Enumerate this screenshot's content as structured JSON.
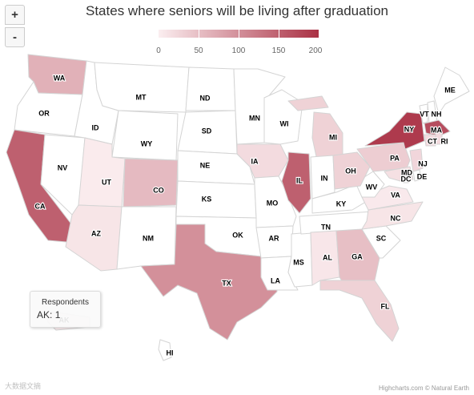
{
  "title": "States where seniors will be living after graduation",
  "zoom": {
    "in_label": "+",
    "out_label": "-"
  },
  "legend": {
    "min": 0,
    "max": 200,
    "ticks": [
      "0",
      "50",
      "100",
      "150",
      "200"
    ],
    "min_color": "#fbeef0",
    "max_color": "#aa3144"
  },
  "tooltip": {
    "header": "Respondents",
    "state": "AK",
    "value_text": "1"
  },
  "credits": "Highcharts.com © Natural Earth",
  "watermark": "大数据文摘",
  "states": [
    {
      "code": "WA",
      "value": 65
    },
    {
      "code": "OR",
      "value": 0
    },
    {
      "code": "CA",
      "value": 150
    },
    {
      "code": "NV",
      "value": 0
    },
    {
      "code": "ID",
      "value": 0
    },
    {
      "code": "MT",
      "value": 0
    },
    {
      "code": "WY",
      "value": 0
    },
    {
      "code": "UT",
      "value": 3
    },
    {
      "code": "AZ",
      "value": 10
    },
    {
      "code": "CO",
      "value": 55
    },
    {
      "code": "NM",
      "value": 0
    },
    {
      "code": "ND",
      "value": 0
    },
    {
      "code": "SD",
      "value": 0
    },
    {
      "code": "NE",
      "value": 0
    },
    {
      "code": "KS",
      "value": 0
    },
    {
      "code": "OK",
      "value": 0
    },
    {
      "code": "TX",
      "value": 100
    },
    {
      "code": "MN",
      "value": 0
    },
    {
      "code": "IA",
      "value": 20
    },
    {
      "code": "MO",
      "value": 0
    },
    {
      "code": "AR",
      "value": 0
    },
    {
      "code": "LA",
      "value": 0
    },
    {
      "code": "WI",
      "value": 0
    },
    {
      "code": "IL",
      "value": 150
    },
    {
      "code": "MS",
      "value": 0
    },
    {
      "code": "MI",
      "value": 30
    },
    {
      "code": "IN",
      "value": 0
    },
    {
      "code": "KY",
      "value": 0
    },
    {
      "code": "TN",
      "value": 0
    },
    {
      "code": "AL",
      "value": 8
    },
    {
      "code": "GA",
      "value": 50
    },
    {
      "code": "FL",
      "value": 30
    },
    {
      "code": "SC",
      "value": 0
    },
    {
      "code": "NC",
      "value": 10
    },
    {
      "code": "VA",
      "value": 5
    },
    {
      "code": "WV",
      "value": 0
    },
    {
      "code": "OH",
      "value": 30
    },
    {
      "code": "PA",
      "value": 35
    },
    {
      "code": "NY",
      "value": 190
    },
    {
      "code": "VT",
      "value": 0
    },
    {
      "code": "NH",
      "value": 0
    },
    {
      "code": "ME",
      "value": 0
    },
    {
      "code": "MA",
      "value": 170
    },
    {
      "code": "CT",
      "value": 20
    },
    {
      "code": "RI",
      "value": 20
    },
    {
      "code": "NJ",
      "value": 25
    },
    {
      "code": "DE",
      "value": 0
    },
    {
      "code": "MD",
      "value": 15
    },
    {
      "code": "DC",
      "value": 0
    },
    {
      "code": "HI",
      "value": 0
    },
    {
      "code": "AK",
      "value": 1
    }
  ]
}
